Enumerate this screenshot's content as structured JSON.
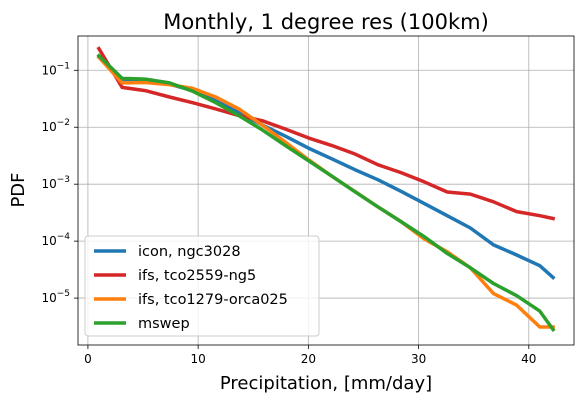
{
  "chart_data": {
    "type": "line",
    "title": "Monthly, 1 degree res (100km)",
    "xlabel": "Precipitation, [mm/day]",
    "ylabel": "PDF",
    "x_scale": "linear",
    "y_scale": "log",
    "xlim": [
      -0.9,
      44.1
    ],
    "ylim": [
      1.5e-06,
      0.4
    ],
    "xticks": [
      0,
      10,
      20,
      30,
      40
    ],
    "yticks": [
      {
        "value": 0.1,
        "base": "10",
        "exp": "−1"
      },
      {
        "value": 0.01,
        "base": "10",
        "exp": "−2"
      },
      {
        "value": 0.001,
        "base": "10",
        "exp": "−3"
      },
      {
        "value": 0.0001,
        "base": "10",
        "exp": "−4"
      },
      {
        "value": 1e-05,
        "base": "10",
        "exp": "−5"
      }
    ],
    "grid": true,
    "legend_position": "lower-left",
    "series": [
      {
        "name": "icon, ngc3028",
        "color": "#1f77b4",
        "x": [
          1.0,
          3.1,
          5.2,
          7.4,
          9.5,
          11.6,
          13.7,
          15.8,
          17.9,
          20.0,
          22.1,
          24.2,
          26.3,
          28.4,
          30.5,
          32.6,
          34.7,
          36.8,
          38.9,
          41.0,
          42.2
        ],
        "y": [
          0.17,
          0.07,
          0.066,
          0.057,
          0.044,
          0.029,
          0.018,
          0.011,
          0.007,
          0.0043,
          0.0028,
          0.0018,
          0.0012,
          0.00075,
          0.00046,
          0.00028,
          0.00017,
          8.6e-05,
          5.7e-05,
          3.7e-05,
          2.3e-05
        ]
      },
      {
        "name": "ifs, tco2559-ng5",
        "color": "#d62728",
        "x": [
          1.0,
          3.1,
          5.2,
          7.4,
          9.5,
          11.6,
          13.7,
          15.8,
          17.9,
          20.0,
          22.1,
          24.2,
          26.3,
          28.4,
          30.5,
          32.6,
          34.7,
          36.8,
          38.9,
          41.0,
          42.2
        ],
        "y": [
          0.24,
          0.05,
          0.044,
          0.034,
          0.027,
          0.021,
          0.016,
          0.013,
          0.0093,
          0.0065,
          0.0048,
          0.0034,
          0.0022,
          0.0016,
          0.0011,
          0.00073,
          0.00067,
          0.00049,
          0.00033,
          0.00028,
          0.00025
        ]
      },
      {
        "name": "ifs, tco1279-orca025",
        "color": "#ff7f0e",
        "x": [
          1.0,
          3.1,
          5.2,
          7.4,
          9.5,
          11.6,
          13.7,
          15.8,
          17.9,
          20.0,
          22.1,
          24.2,
          26.3,
          28.4,
          30.5,
          32.6,
          34.7,
          36.8,
          38.9,
          41.0,
          42.2
        ],
        "y": [
          0.17,
          0.06,
          0.061,
          0.056,
          0.048,
          0.034,
          0.021,
          0.011,
          0.0055,
          0.0027,
          0.0014,
          0.00075,
          0.0004,
          0.00022,
          0.00011,
          6.5e-05,
          3.4e-05,
          1.2e-05,
          7.5e-06,
          3.1e-06,
          3.1e-06
        ]
      },
      {
        "name": "mswep",
        "color": "#2ca02c",
        "x": [
          1.0,
          3.1,
          5.2,
          7.4,
          9.5,
          11.6,
          13.7,
          15.8,
          17.9,
          20.0,
          22.1,
          24.2,
          26.3,
          28.4,
          30.5,
          32.6,
          34.7,
          36.8,
          38.9,
          41.0,
          42.2
        ],
        "y": [
          0.18,
          0.072,
          0.07,
          0.06,
          0.043,
          0.027,
          0.016,
          0.009,
          0.0048,
          0.0026,
          0.0014,
          0.00074,
          0.0004,
          0.00022,
          0.00012,
          6.1e-05,
          3.4e-05,
          1.8e-05,
          1.1e-05,
          5.9e-06,
          2.8e-06
        ]
      }
    ]
  }
}
